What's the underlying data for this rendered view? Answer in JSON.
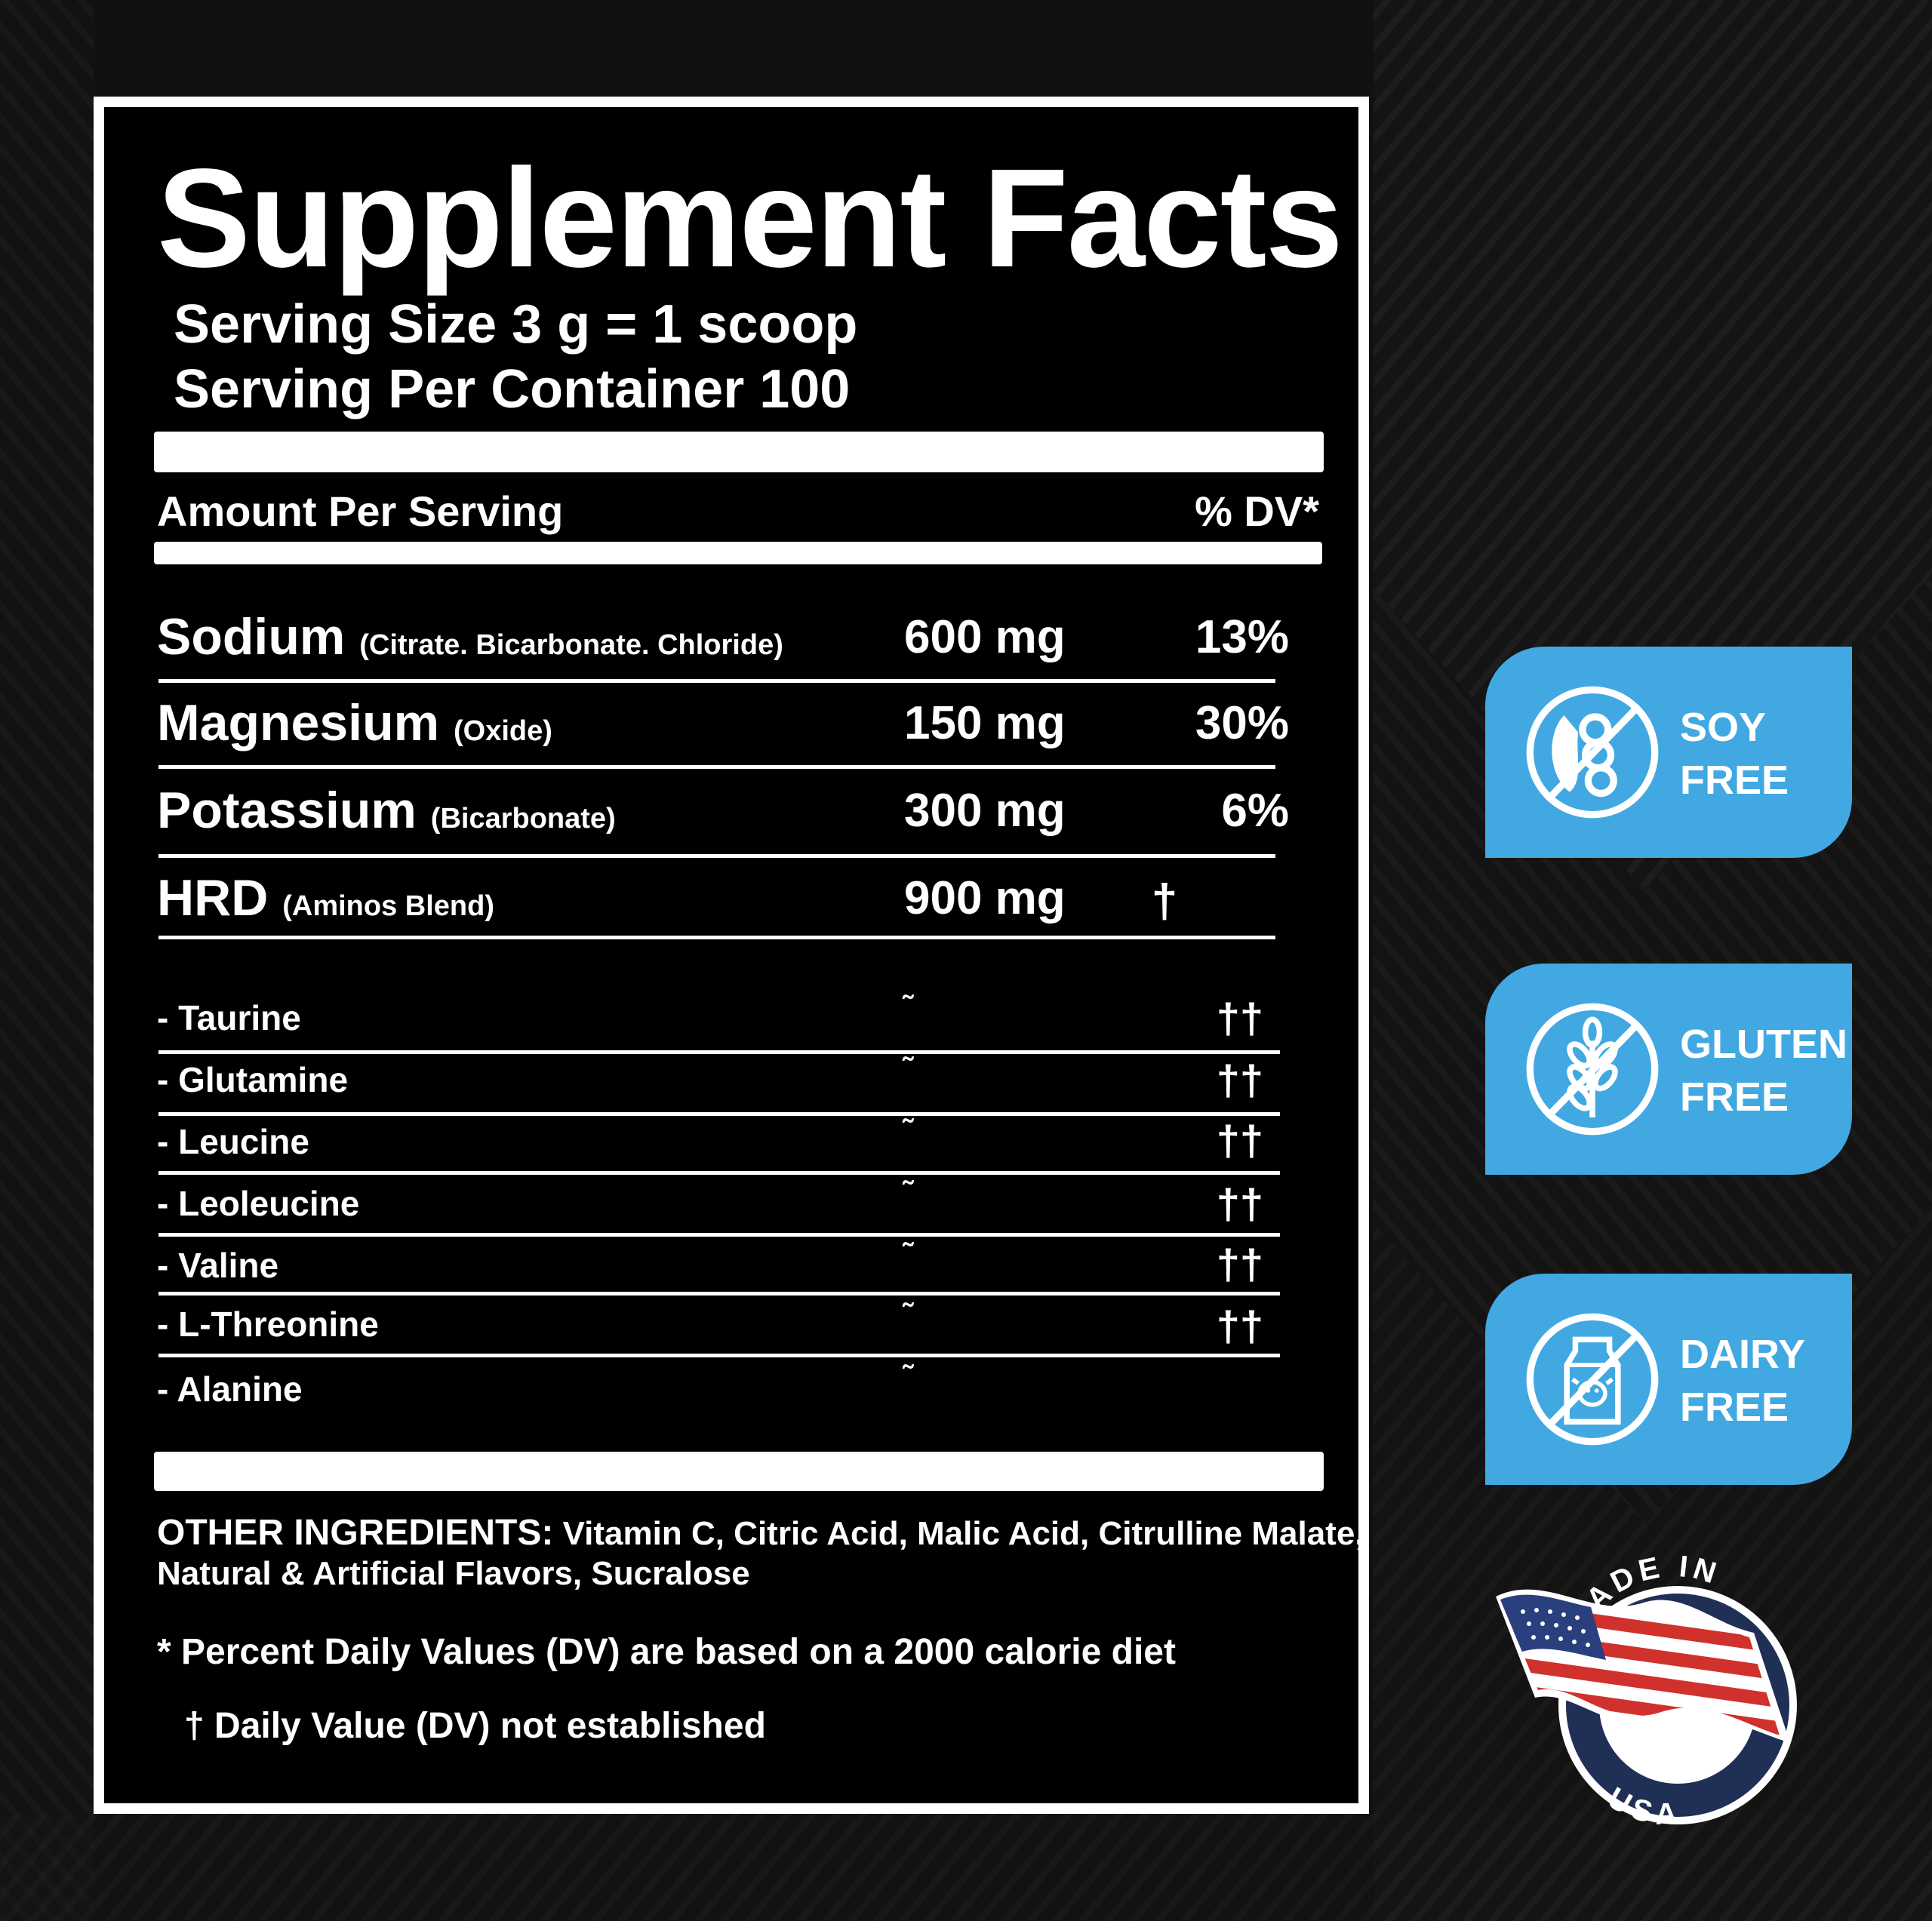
{
  "label": {
    "title": "Supplement Facts",
    "serving_size": "Serving Size 3 g = 1 scoop",
    "servings_per_container": "Serving Per Container 100",
    "amount_per_serving": "Amount Per Serving",
    "dv_header": "% DV*"
  },
  "nutrients": [
    {
      "name": "Sodium",
      "source": "(Citrate. Bicarbonate. Chloride)",
      "amount": "600 mg",
      "dv": "13%"
    },
    {
      "name": "Magnesium",
      "source": "(Oxide)",
      "amount": "150 mg",
      "dv": "30%"
    },
    {
      "name": "Potassium",
      "source": "(Bicarbonate)",
      "amount": "300 mg",
      "dv": "6%"
    },
    {
      "name": "HRD",
      "source": "(Aminos Blend)",
      "amount": "900 mg",
      "dv": "†"
    }
  ],
  "blend": [
    {
      "name": "- Taurine",
      "amount": "˜",
      "dv": "††"
    },
    {
      "name": "- Glutamine",
      "amount": "˜",
      "dv": "††"
    },
    {
      "name": "- Leucine",
      "amount": "˜",
      "dv": "††"
    },
    {
      "name": "- Leoleucine",
      "amount": "˜",
      "dv": "††"
    },
    {
      "name": "- Valine",
      "amount": "˜",
      "dv": "††"
    },
    {
      "name": "- L-Threonine",
      "amount": "˜",
      "dv": "††"
    },
    {
      "name": "- Alanine",
      "amount": "˜",
      "dv": ""
    }
  ],
  "other_ingredients": {
    "label": "OTHER INGREDIENTS:",
    "line1": "Vitamin C, Citric Acid, Malic Acid, Citrulline Malate,",
    "line2": "Natural & Artificial Flavors, Sucralose"
  },
  "footnotes": {
    "percent_dv": "* Percent Daily Values (DV) are based on a 2000 calorie diet",
    "not_established": "† Daily Value (DV) not established"
  },
  "badges": [
    {
      "line1": "SOY",
      "line2": "FREE",
      "icon": "no-soy-icon"
    },
    {
      "line1": "GLUTEN",
      "line2": "FREE",
      "icon": "no-gluten-icon"
    },
    {
      "line1": "DAIRY",
      "line2": "FREE",
      "icon": "no-dairy-icon"
    }
  ],
  "seal": {
    "top_text": "MADE IN",
    "bottom_text": "USA",
    "icon": "usa-flag-seal"
  },
  "colors": {
    "background": "#121212",
    "panel": "#000000",
    "badge": "#41a8e2",
    "flag_red": "#d0312d",
    "flag_blue": "#2a3f7e"
  }
}
